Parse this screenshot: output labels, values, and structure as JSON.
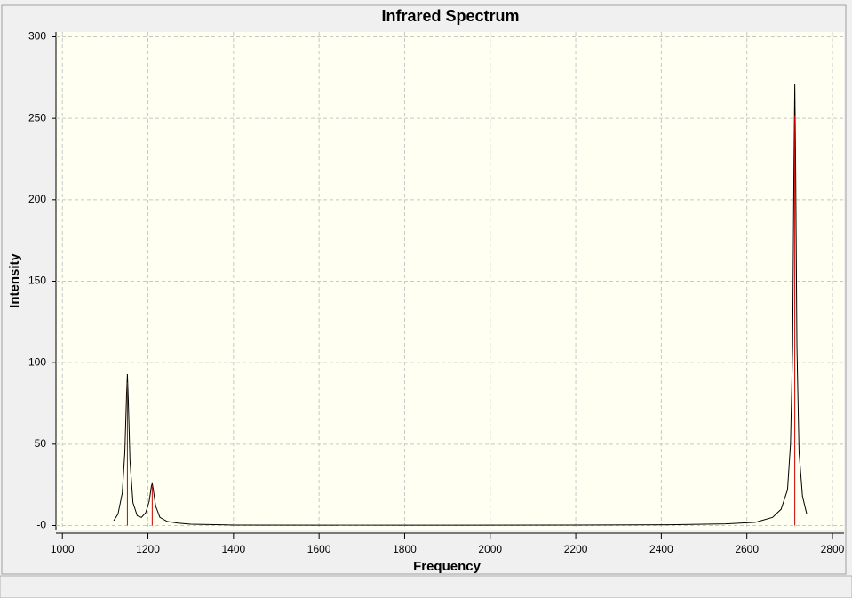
{
  "chart_data": {
    "type": "line",
    "title": "Infrared Spectrum",
    "x_label": "Frequency",
    "y_label": "Intensity",
    "xlim": [
      985,
      2827
    ],
    "ylim": [
      -3,
      303
    ],
    "xticks": [
      1000,
      1200,
      1400,
      1600,
      1800,
      2000,
      2200,
      2400,
      2600,
      2800
    ],
    "yticks": [
      {
        "value": 0,
        "label": "-0"
      },
      50,
      100,
      150,
      200,
      250,
      300
    ],
    "grid": true,
    "series": [
      {
        "style": "curve",
        "color": "#000000",
        "x": [
          1120,
          1130,
          1140,
          1146,
          1150,
          1152,
          1154,
          1158,
          1165,
          1175,
          1185,
          1195,
          1203,
          1208,
          1210,
          1212,
          1218,
          1228,
          1245,
          1270,
          1300,
          1400,
          1800,
          2200,
          2420,
          2550,
          2620,
          2660,
          2680,
          2695,
          2702,
          2707,
          2710,
          2712,
          2714,
          2717,
          2722,
          2730,
          2740
        ],
        "values": [
          3,
          7,
          20,
          45,
          80,
          93,
          78,
          40,
          14,
          6,
          5,
          8,
          15,
          24,
          26,
          23,
          12,
          5,
          2.5,
          1.5,
          0.8,
          0.3,
          0.2,
          0.3,
          0.5,
          1,
          2,
          5,
          10,
          22,
          50,
          110,
          220,
          271,
          220,
          110,
          45,
          18,
          7
        ]
      },
      {
        "style": "sticks",
        "color": "#cc0000",
        "x": [
          1152,
          1210,
          2712
        ],
        "values": [
          88,
          24,
          252
        ]
      }
    ]
  }
}
